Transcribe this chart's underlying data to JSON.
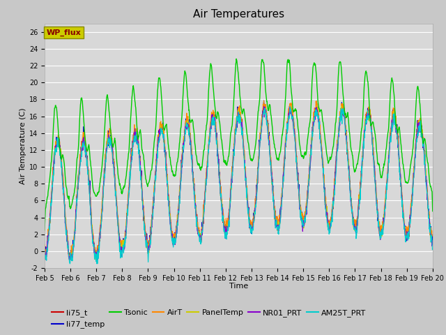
{
  "title": "Air Temperatures",
  "ylabel": "Air Temperature (C)",
  "xlabel": "Time",
  "ylim": [
    -2,
    27
  ],
  "series_colors": {
    "li75_t": "#cc0000",
    "li77_temp": "#0000cc",
    "Tsonic": "#00cc00",
    "AirT": "#ff8800",
    "PanelTemp": "#cccc00",
    "NR01_PRT": "#8800cc",
    "AM25T_PRT": "#00cccc"
  },
  "xtick_labels": [
    "Feb 5",
    "Feb 6",
    "Feb 7",
    "Feb 8",
    "Feb 9",
    "Feb 10",
    "Feb 11",
    "Feb 12",
    "Feb 13",
    "Feb 14",
    "Feb 15",
    "Feb 16",
    "Feb 17",
    "Feb 18",
    "Feb 19",
    "Feb 20"
  ],
  "figure_facecolor": "#c8c8c8",
  "axes_facecolor": "#d8d8d8",
  "grid_color": "#ffffff",
  "wp_flux_box_facecolor": "#cccc00",
  "wp_flux_box_edgecolor": "#888800",
  "wp_flux_text_color": "#880000",
  "title_fontsize": 11,
  "tick_fontsize": 7,
  "label_fontsize": 8,
  "legend_fontsize": 8
}
